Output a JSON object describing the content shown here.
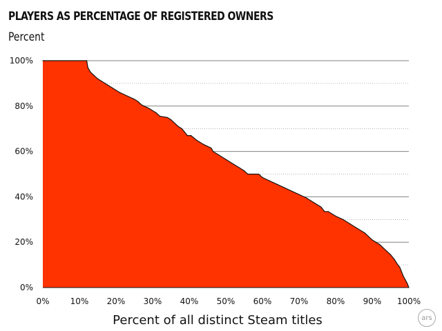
{
  "chart_data": {
    "type": "area",
    "title": "PLAYERS AS PERCENTAGE OF REGISTERED OWNERS",
    "subtitle": "Percent",
    "xlabel": "Percent of all distinct Steam titles",
    "ylabel": "",
    "xlim": [
      0,
      100
    ],
    "ylim": [
      0,
      100
    ],
    "x_ticks": [
      "0%",
      "10%",
      "20%",
      "30%",
      "40%",
      "50%",
      "60%",
      "70%",
      "80%",
      "90%",
      "100%"
    ],
    "y_ticks": [
      "0%",
      "20%",
      "40%",
      "60%",
      "80%",
      "100%"
    ],
    "grid": "horizontal, solid at major ticks, dotted at minor ticks",
    "series": [
      {
        "color": "#ff3300",
        "x": [
          0,
          12,
          12.3,
          13,
          14,
          15,
          17,
          19,
          21,
          23,
          25,
          26,
          27,
          29,
          31,
          32,
          34,
          35,
          36,
          37,
          38,
          38.5,
          39.5,
          40.5,
          42,
          44,
          46,
          46.5,
          48,
          50,
          52,
          54,
          55,
          56,
          58,
          59,
          60,
          62,
          64,
          66,
          68,
          70,
          72,
          74,
          76,
          77,
          78,
          80,
          82,
          84,
          86,
          88,
          89,
          90,
          91,
          92,
          93,
          94,
          95,
          96,
          97,
          97.5,
          98,
          98.5,
          99,
          99.5,
          100
        ],
        "y": [
          100,
          100,
          97,
          95,
          93.5,
          92,
          90,
          88,
          86,
          84.5,
          83,
          82,
          80.5,
          79,
          77,
          75.5,
          75,
          74,
          72.5,
          71,
          70,
          69,
          67,
          67,
          65,
          63,
          61.5,
          60,
          58.5,
          56.5,
          54.5,
          52.5,
          51.5,
          50,
          50,
          50,
          48.5,
          47,
          45.5,
          44,
          42.5,
          41,
          39.5,
          37.5,
          35.5,
          33.5,
          33.5,
          31.5,
          30,
          28,
          26,
          24,
          22.5,
          21,
          20,
          19,
          17.5,
          16,
          14.5,
          12.5,
          10,
          9,
          7,
          5,
          3.5,
          2,
          0
        ]
      }
    ]
  },
  "watermark": "ars",
  "colors": {
    "fill": "#ff3300",
    "outline": "#111111",
    "grid": "#808080"
  }
}
